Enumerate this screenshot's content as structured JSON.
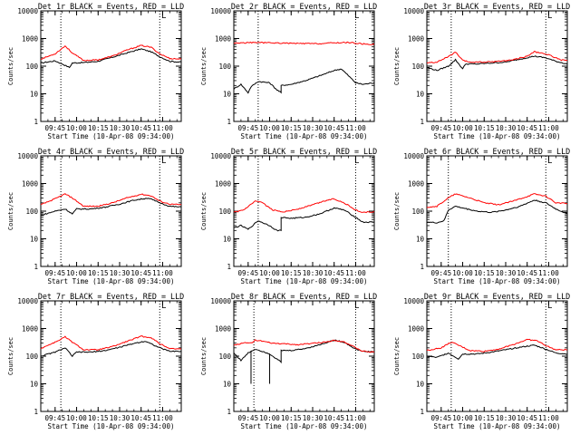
{
  "figure": {
    "xlabel": "Start Time (10-Apr-08 09:34:00)",
    "ylabel": "Counts/sec",
    "x_tick_labels": [
      "09:45",
      "10:00",
      "10:15",
      "10:30",
      "10:45",
      "11:00"
    ],
    "y_tick_labels": [
      "1",
      "10",
      "100",
      "1000",
      "10000"
    ],
    "corner_mark": "L",
    "colors": {
      "events": "#000000",
      "lld": "#ff0000",
      "axes": "#000000",
      "background": "#ffffff"
    }
  },
  "chart_data": [
    {
      "type": "line",
      "title": "Det 1r BLACK = Events, RED = LLD",
      "xlabel": "Start Time (10-Apr-08 09:34:00)",
      "ylabel": "Counts/sec",
      "y_scale": "log",
      "ylim": [
        1,
        10000
      ],
      "xlim": [
        "09:35",
        "11:13"
      ],
      "x_unit": "time (10-Apr-08)",
      "events": {
        "x": [
          "09:35",
          "09:45",
          "09:50",
          "09:55",
          "09:57",
          "10:05",
          "10:15",
          "10:25",
          "10:35",
          "10:45",
          "10:52",
          "10:58",
          "11:05",
          "11:13"
        ],
        "y": [
          130,
          155,
          120,
          90,
          130,
          135,
          150,
          210,
          300,
          420,
          330,
          220,
          150,
          140
        ]
      },
      "lld": {
        "x": [
          "09:35",
          "09:45",
          "09:52",
          "09:57",
          "10:05",
          "10:15",
          "10:25",
          "10:35",
          "10:45",
          "10:52",
          "10:58",
          "11:05",
          "11:13"
        ],
        "y": [
          180,
          280,
          540,
          300,
          160,
          170,
          230,
          380,
          560,
          480,
          280,
          190,
          180
        ]
      },
      "dotted_x": [
        "09:49",
        "10:58"
      ]
    },
    {
      "type": "line",
      "title": "Det 2r BLACK = Events, RED = LLD",
      "xlabel": "Start Time (10-Apr-08 09:34:00)",
      "ylabel": "Counts/sec",
      "y_scale": "log",
      "ylim": [
        1,
        10000
      ],
      "xlim": [
        "09:35",
        "11:13"
      ],
      "x_unit": "time (10-Apr-08)",
      "events": {
        "x": [
          "09:35",
          "09:40",
          "09:45",
          "09:47",
          "09:52",
          "10:00",
          "10:05",
          "10:08",
          "10:08",
          "10:15",
          "10:25",
          "10:35",
          "10:45",
          "10:50",
          "10:55",
          "11:00",
          "11:05",
          "11:13"
        ],
        "y": [
          15,
          22,
          11,
          18,
          28,
          25,
          14,
          11,
          20,
          22,
          30,
          45,
          70,
          80,
          45,
          25,
          22,
          25
        ]
      },
      "lld": {
        "x": [
          "09:35",
          "09:50",
          "10:05",
          "10:20",
          "10:35",
          "10:45",
          "10:55",
          "11:05",
          "11:13"
        ],
        "y": [
          680,
          720,
          690,
          660,
          650,
          700,
          720,
          640,
          610
        ]
      },
      "dotted_x": [
        "09:52",
        "11:00"
      ]
    },
    {
      "type": "line",
      "title": "Det 3r BLACK = Events, RED = LLD",
      "xlabel": "Start Time (10-Apr-08 09:34:00)",
      "ylabel": "Counts/sec",
      "y_scale": "log",
      "ylim": [
        1,
        10000
      ],
      "xlim": [
        "09:35",
        "11:13"
      ],
      "x_unit": "time (10-Apr-08)",
      "events": {
        "x": [
          "09:35",
          "09:42",
          "09:50",
          "09:55",
          "10:00",
          "10:02",
          "10:10",
          "10:20",
          "10:30",
          "10:40",
          "10:50",
          "10:58",
          "11:05",
          "11:13"
        ],
        "y": [
          90,
          70,
          100,
          170,
          80,
          120,
          120,
          130,
          140,
          180,
          230,
          200,
          150,
          120
        ]
      },
      "lld": {
        "x": [
          "09:35",
          "09:42",
          "09:50",
          "09:55",
          "10:00",
          "10:05",
          "10:15",
          "10:25",
          "10:35",
          "10:45",
          "10:50",
          "11:00",
          "11:08",
          "11:13"
        ],
        "y": [
          130,
          140,
          220,
          320,
          160,
          140,
          140,
          150,
          170,
          230,
          330,
          260,
          170,
          160
        ]
      },
      "dotted_x": [
        "09:52",
        "10:58"
      ]
    },
    {
      "type": "line",
      "title": "Det 4r BLACK = Events, RED = LLD",
      "xlabel": "Start Time (10-Apr-08 09:34:00)",
      "ylabel": "Counts/sec",
      "y_scale": "log",
      "ylim": [
        1,
        10000
      ],
      "xlim": [
        "09:35",
        "11:13"
      ],
      "x_unit": "time (10-Apr-08)",
      "events": {
        "x": [
          "09:35",
          "09:45",
          "09:52",
          "09:57",
          "10:00",
          "10:10",
          "10:20",
          "10:30",
          "10:40",
          "10:50",
          "10:58",
          "11:05",
          "11:13"
        ],
        "y": [
          70,
          100,
          120,
          80,
          120,
          120,
          140,
          180,
          250,
          300,
          200,
          150,
          140
        ]
      },
      "lld": {
        "x": [
          "09:35",
          "09:45",
          "09:52",
          "09:57",
          "10:05",
          "10:15",
          "10:25",
          "10:35",
          "10:45",
          "10:52",
          "10:58",
          "11:05",
          "11:13"
        ],
        "y": [
          170,
          280,
          420,
          300,
          150,
          150,
          200,
          300,
          410,
          360,
          230,
          180,
          170
        ]
      },
      "dotted_x": [
        "09:49",
        "10:58"
      ]
    },
    {
      "type": "line",
      "title": "Det 5r BLACK = Events, RED = LLD",
      "xlabel": "Start Time (10-Apr-08 09:34:00)",
      "ylabel": "Counts/sec",
      "y_scale": "log",
      "ylim": [
        1,
        10000
      ],
      "xlim": [
        "09:35",
        "11:13"
      ],
      "x_unit": "time (10-Apr-08)",
      "events": {
        "x": [
          "09:35",
          "09:40",
          "09:45",
          "09:52",
          "10:00",
          "10:05",
          "10:08",
          "10:08",
          "10:15",
          "10:25",
          "10:35",
          "10:45",
          "10:52",
          "11:00",
          "11:05",
          "11:13"
        ],
        "y": [
          25,
          30,
          22,
          45,
          30,
          20,
          20,
          60,
          55,
          60,
          80,
          130,
          110,
          60,
          40,
          40
        ]
      },
      "lld": {
        "x": [
          "09:35",
          "09:42",
          "09:50",
          "09:55",
          "10:02",
          "10:10",
          "10:20",
          "10:30",
          "10:40",
          "10:45",
          "10:52",
          "11:00",
          "11:05",
          "11:13"
        ],
        "y": [
          90,
          110,
          230,
          200,
          110,
          95,
          120,
          170,
          250,
          280,
          200,
          110,
          90,
          95
        ]
      },
      "dotted_x": [
        "09:52",
        "11:00"
      ]
    },
    {
      "type": "line",
      "title": "Det 6r BLACK = Events, RED = LLD",
      "xlabel": "Start Time (10-Apr-08 09:34:00)",
      "ylabel": "Counts/sec",
      "y_scale": "log",
      "ylim": [
        1,
        10000
      ],
      "xlim": [
        "09:35",
        "11:13"
      ],
      "x_unit": "time (10-Apr-08)",
      "events": {
        "x": [
          "09:35",
          "09:42",
          "09:47",
          "09:50",
          "09:55",
          "10:00",
          "10:10",
          "10:20",
          "10:30",
          "10:40",
          "10:50",
          "10:58",
          "11:05",
          "11:13"
        ],
        "y": [
          40,
          38,
          45,
          110,
          150,
          130,
          100,
          90,
          110,
          150,
          250,
          200,
          120,
          80
        ]
      },
      "lld": {
        "x": [
          "09:35",
          "09:42",
          "09:50",
          "09:55",
          "10:05",
          "10:15",
          "10:25",
          "10:35",
          "10:45",
          "10:50",
          "10:58",
          "11:05",
          "11:13"
        ],
        "y": [
          140,
          150,
          300,
          420,
          300,
          200,
          170,
          230,
          340,
          420,
          350,
          200,
          190
        ]
      },
      "dotted_x": [
        "09:50",
        "10:58"
      ]
    },
    {
      "type": "line",
      "title": "Det 7r BLACK = Events, RED = LLD",
      "xlabel": "Start Time (10-Apr-08 09:34:00)",
      "ylabel": "Counts/sec",
      "y_scale": "log",
      "ylim": [
        1,
        10000
      ],
      "xlim": [
        "09:35",
        "11:13"
      ],
      "x_unit": "time (10-Apr-08)",
      "events": {
        "x": [
          "09:35",
          "09:45",
          "09:52",
          "09:57",
          "10:00",
          "10:10",
          "10:20",
          "10:30",
          "10:40",
          "10:48",
          "10:58",
          "11:05",
          "11:13"
        ],
        "y": [
          100,
          140,
          200,
          100,
          140,
          140,
          160,
          210,
          290,
          350,
          200,
          150,
          150
        ]
      },
      "lld": {
        "x": [
          "09:35",
          "09:45",
          "09:52",
          "09:57",
          "10:05",
          "10:15",
          "10:25",
          "10:35",
          "10:45",
          "10:52",
          "10:58",
          "11:05",
          "11:13"
        ],
        "y": [
          190,
          320,
          500,
          320,
          170,
          170,
          220,
          340,
          520,
          470,
          280,
          190,
          180
        ]
      },
      "dotted_x": [
        "09:49",
        "10:58"
      ]
    },
    {
      "type": "line",
      "title": "Det 8r BLACK = Events, RED = LLD",
      "xlabel": "Start Time (10-Apr-08 09:34:00)",
      "ylabel": "Counts/sec",
      "y_scale": "log",
      "ylim": [
        1,
        10000
      ],
      "xlim": [
        "09:35",
        "11:13"
      ],
      "x_unit": "time (10-Apr-08)",
      "events": {
        "x": [
          "09:35",
          "09:40",
          "09:45",
          "09:47",
          "09:47",
          "09:47",
          "09:50",
          "09:55",
          "10:00",
          "10:00",
          "10:00",
          "10:05",
          "10:08",
          "10:08",
          "10:15",
          "10:25",
          "10:35",
          "10:45",
          "10:52",
          "11:00",
          "11:05",
          "11:13"
        ],
        "y": [
          130,
          70,
          130,
          150,
          10,
          150,
          180,
          150,
          120,
          10,
          120,
          80,
          60,
          160,
          160,
          190,
          260,
          380,
          320,
          180,
          150,
          140
        ]
      },
      "lld": {
        "x": [
          "09:35",
          "09:42",
          "09:47",
          "09:50",
          "09:53",
          "09:57",
          "10:02",
          "10:10",
          "10:20",
          "10:30",
          "10:40",
          "10:45",
          "10:52",
          "11:00",
          "11:05",
          "11:13"
        ],
        "y": [
          250,
          300,
          300,
          380,
          360,
          330,
          290,
          280,
          260,
          290,
          330,
          380,
          330,
          200,
          150,
          140
        ]
      },
      "dotted_x": [
        "09:49",
        "11:00"
      ]
    },
    {
      "type": "line",
      "title": "Det 9r BLACK = Events, RED = LLD",
      "xlabel": "Start Time (10-Apr-08 09:34:00)",
      "ylabel": "Counts/sec",
      "y_scale": "log",
      "ylim": [
        1,
        10000
      ],
      "xlim": [
        "09:35",
        "11:13"
      ],
      "x_unit": "time (10-Apr-08)",
      "events": {
        "x": [
          "09:35",
          "09:42",
          "09:50",
          "09:57",
          "10:00",
          "10:10",
          "10:20",
          "10:30",
          "10:40",
          "10:50",
          "10:58",
          "11:05",
          "11:13"
        ],
        "y": [
          100,
          90,
          130,
          80,
          120,
          120,
          140,
          170,
          210,
          250,
          180,
          130,
          120
        ]
      },
      "lld": {
        "x": [
          "09:35",
          "09:45",
          "09:52",
          "09:57",
          "10:05",
          "10:15",
          "10:25",
          "10:35",
          "10:45",
          "10:52",
          "10:58",
          "11:05",
          "11:13"
        ],
        "y": [
          160,
          200,
          320,
          250,
          160,
          150,
          180,
          260,
          400,
          360,
          240,
          170,
          170
        ]
      },
      "dotted_x": [
        "09:52",
        "10:58"
      ]
    }
  ]
}
